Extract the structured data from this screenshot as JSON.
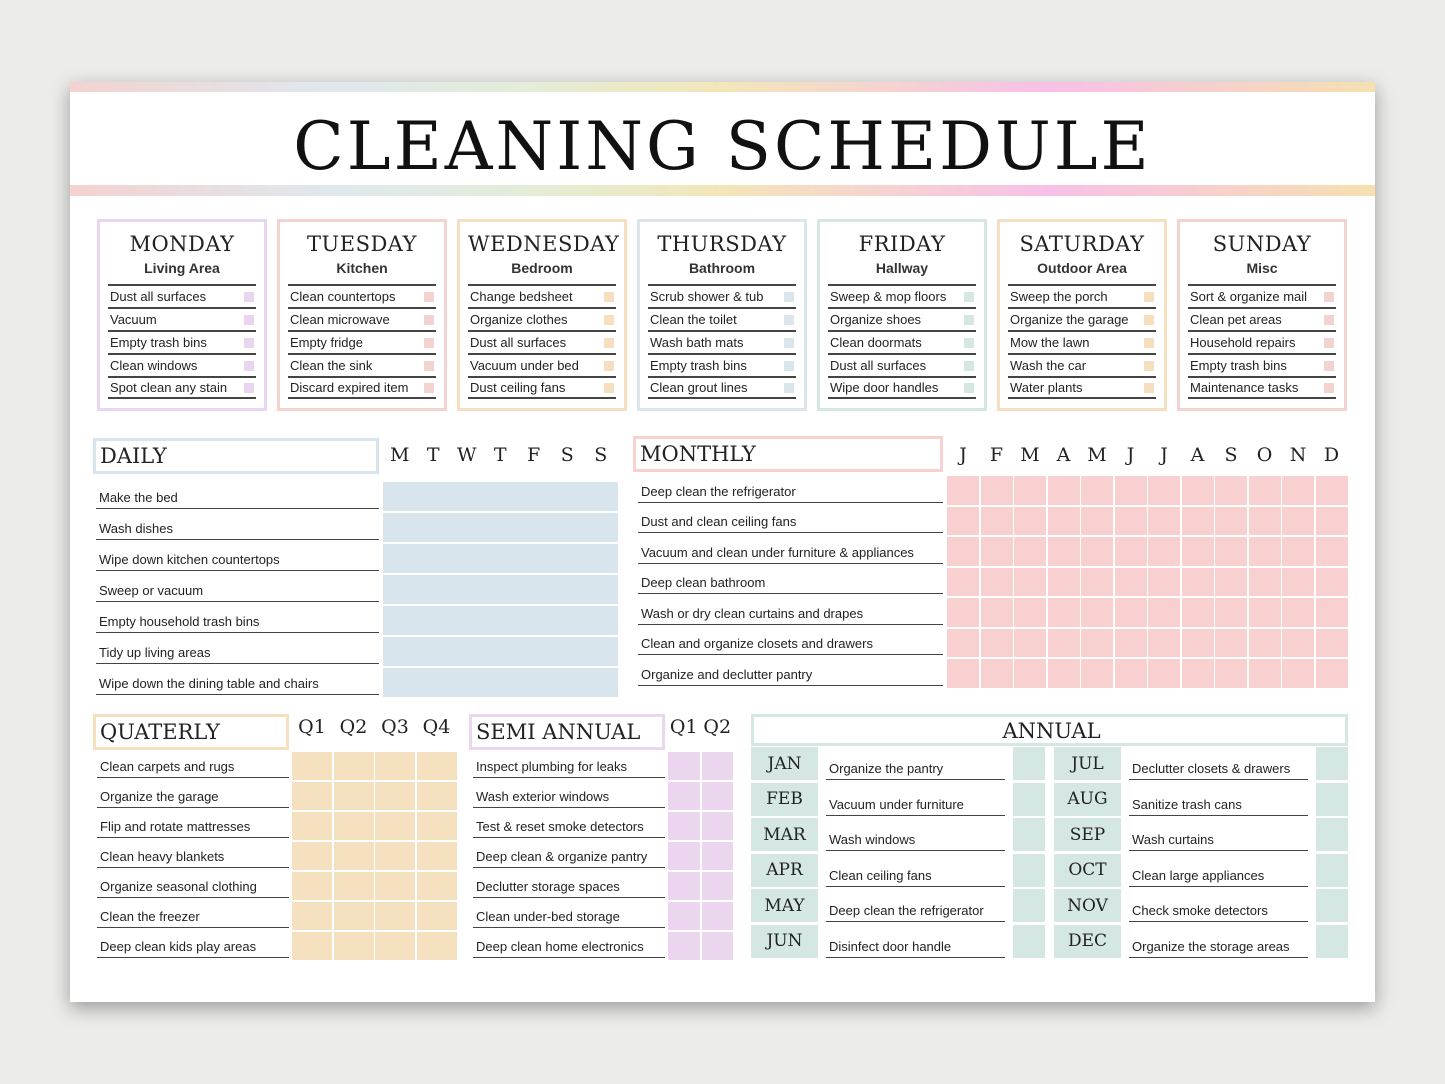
{
  "title": "CLEANING SCHEDULE",
  "colors": {
    "lavender": "#e9d5ef",
    "pink": "#f3d3d0",
    "peach": "#f5dfbe",
    "blue": "#dbe6ec",
    "green": "#d5e7e2"
  },
  "days": [
    {
      "day": "MONDAY",
      "area": "Living Area",
      "color": "#e9d5ef",
      "tasks": [
        "Dust all surfaces",
        "Vacuum",
        "Empty trash bins",
        "Clean windows",
        "Spot clean any stain"
      ]
    },
    {
      "day": "TUESDAY",
      "area": "Kitchen",
      "color": "#f3d3d0",
      "tasks": [
        "Clean countertops",
        "Clean microwave",
        "Empty fridge",
        "Clean the sink",
        "Discard expired item"
      ]
    },
    {
      "day": "WEDNESDAY",
      "area": "Bedroom",
      "color": "#f5dfbe",
      "tasks": [
        "Change bedsheet",
        "Organize clothes",
        "Dust all surfaces",
        "Vacuum under bed",
        "Dust ceiling fans"
      ]
    },
    {
      "day": "THURSDAY",
      "area": "Bathroom",
      "color": "#dbe6ec",
      "tasks": [
        "Scrub shower & tub",
        "Clean the toilet",
        "Wash bath mats",
        "Empty trash bins",
        "Clean grout lines"
      ]
    },
    {
      "day": "FRIDAY",
      "area": "Hallway",
      "color": "#d5e7e2",
      "tasks": [
        "Sweep & mop floors",
        "Organize shoes",
        "Clean doormats",
        "Dust all surfaces",
        "Wipe door handles"
      ]
    },
    {
      "day": "SATURDAY",
      "area": "Outdoor Area",
      "color": "#f5dfbe",
      "tasks": [
        "Sweep the porch",
        "Organize the garage",
        "Mow the lawn",
        "Wash the car",
        "Water plants"
      ]
    },
    {
      "day": "SUNDAY",
      "area": "Misc",
      "color": "#f3d3d0",
      "tasks": [
        "Sort & organize mail",
        "Clean pet areas",
        "Household repairs",
        "Empty trash bins",
        "Maintenance tasks"
      ]
    }
  ],
  "daily": {
    "title": "DAILY",
    "color": "#d8e5ec",
    "columns": [
      "M",
      "T",
      "W",
      "T",
      "F",
      "S",
      "S"
    ],
    "tasks": [
      "Make the bed",
      "Wash dishes",
      "Wipe down kitchen countertops",
      "Sweep or vacuum",
      "Empty household trash bins",
      "Tidy up living areas",
      "Wipe down the dining table and chairs"
    ]
  },
  "monthly": {
    "title": "MONTHLY",
    "color": "#f7d0cf",
    "columns": [
      "J",
      "F",
      "M",
      "A",
      "M",
      "J",
      "J",
      "A",
      "S",
      "O",
      "N",
      "D"
    ],
    "tasks": [
      "Deep clean the refrigerator",
      "Dust and clean ceiling fans",
      "Vacuum and clean under furniture & appliances",
      "Deep clean bathroom",
      "Wash or dry clean curtains and drapes",
      "Clean and organize closets and drawers",
      "Organize and declutter pantry"
    ]
  },
  "quarterly": {
    "title": "QUATERLY",
    "color": "#f5e0bf",
    "columns": [
      "Q1",
      "Q2",
      "Q3",
      "Q4"
    ],
    "tasks": [
      "Clean carpets and rugs",
      "Organize the garage",
      "Flip and rotate mattresses",
      "Clean heavy blankets",
      "Organize seasonal clothing",
      "Clean the freezer",
      "Deep clean kids play areas"
    ]
  },
  "semi_annual": {
    "title": "SEMI ANNUAL",
    "color": "#ecd5ee",
    "columns": [
      "Q1",
      "Q2"
    ],
    "tasks": [
      "Inspect plumbing for leaks",
      "Wash exterior windows",
      "Test & reset smoke detectors",
      "Deep clean & organize pantry",
      "Declutter storage spaces",
      "Clean under-bed storage",
      "Deep clean home electronics"
    ]
  },
  "annual": {
    "title": "ANNUAL",
    "color": "#d5e7e2",
    "left": [
      [
        "JAN",
        "Organize the pantry"
      ],
      [
        "FEB",
        "Vacuum under furniture"
      ],
      [
        "MAR",
        "Wash windows"
      ],
      [
        "APR",
        "Clean ceiling fans"
      ],
      [
        "MAY",
        "Deep clean the refrigerator"
      ],
      [
        "JUN",
        "Disinfect door handle"
      ]
    ],
    "right": [
      [
        "JUL",
        "Declutter closets & drawers"
      ],
      [
        "AUG",
        "Sanitize trash cans"
      ],
      [
        "SEP",
        "Wash curtains"
      ],
      [
        "OCT",
        "Clean large appliances"
      ],
      [
        "NOV",
        "Check smoke detectors"
      ],
      [
        "DEC",
        "Organize the storage areas"
      ]
    ]
  }
}
